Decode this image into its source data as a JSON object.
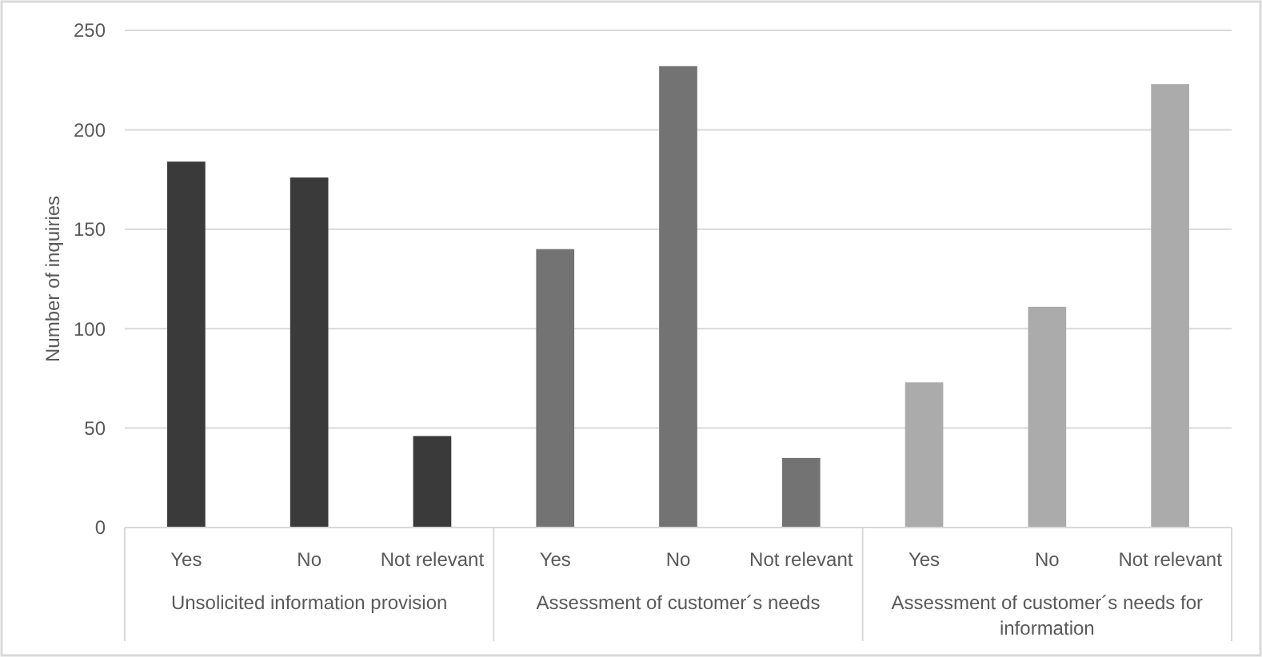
{
  "chart_data": {
    "type": "bar",
    "ylabel": "Number of inquiries",
    "categories": [
      "Yes",
      "No",
      "Not relevant",
      "Yes",
      "No",
      "Not relevant",
      "Yes",
      "No",
      "Not relevant"
    ],
    "values": [
      184,
      176,
      46,
      140,
      232,
      35,
      73,
      111,
      223
    ],
    "colors": [
      "#3a3a3a",
      "#3a3a3a",
      "#3a3a3a",
      "#737373",
      "#737373",
      "#737373",
      "#ababab",
      "#ababab",
      "#ababab"
    ],
    "annotations": [
      "Unsolicited information provision",
      "Assessment of customer´s needs",
      "Assessment of customer´s needs for information"
    ],
    "ylim": [
      0,
      250
    ],
    "yticks": [
      0,
      50,
      100,
      150,
      200,
      250
    ],
    "grid": "y"
  }
}
